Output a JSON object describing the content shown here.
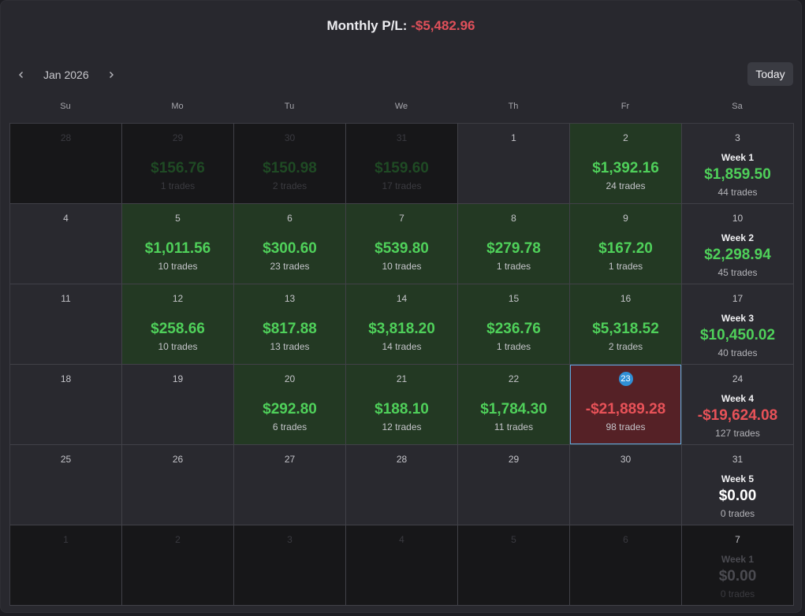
{
  "header": {
    "label": "Monthly P/L:",
    "value": "-$5,482.96",
    "month": "Jan 2026",
    "today_label": "Today"
  },
  "weekdays": [
    "Su",
    "Mo",
    "Tu",
    "We",
    "Th",
    "Fr",
    "Sa"
  ],
  "weeks": [
    {
      "days": [
        {
          "day": "28",
          "outside": true
        },
        {
          "day": "29",
          "outside": true,
          "pnl": "$156.76",
          "trades": "1 trades"
        },
        {
          "day": "30",
          "outside": true,
          "pnl": "$150.98",
          "trades": "2 trades"
        },
        {
          "day": "31",
          "outside": true,
          "pnl": "$159.60",
          "trades": "17 trades"
        },
        {
          "day": "1"
        },
        {
          "day": "2",
          "pnl": "$1,392.16",
          "trades": "24 trades",
          "status": "profit"
        }
      ],
      "summary": {
        "day": "3",
        "label": "Week 1",
        "pnl": "$1,859.50",
        "trades": "44 trades",
        "status": "profit"
      }
    },
    {
      "days": [
        {
          "day": "4"
        },
        {
          "day": "5",
          "pnl": "$1,011.56",
          "trades": "10 trades",
          "status": "profit"
        },
        {
          "day": "6",
          "pnl": "$300.60",
          "trades": "23 trades",
          "status": "profit"
        },
        {
          "day": "7",
          "pnl": "$539.80",
          "trades": "10 trades",
          "status": "profit"
        },
        {
          "day": "8",
          "pnl": "$279.78",
          "trades": "1 trades",
          "status": "profit"
        },
        {
          "day": "9",
          "pnl": "$167.20",
          "trades": "1 trades",
          "status": "profit"
        }
      ],
      "summary": {
        "day": "10",
        "label": "Week 2",
        "pnl": "$2,298.94",
        "trades": "45 trades",
        "status": "profit"
      }
    },
    {
      "days": [
        {
          "day": "11"
        },
        {
          "day": "12",
          "pnl": "$258.66",
          "trades": "10 trades",
          "status": "profit"
        },
        {
          "day": "13",
          "pnl": "$817.88",
          "trades": "13 trades",
          "status": "profit"
        },
        {
          "day": "14",
          "pnl": "$3,818.20",
          "trades": "14 trades",
          "status": "profit"
        },
        {
          "day": "15",
          "pnl": "$236.76",
          "trades": "1 trades",
          "status": "profit"
        },
        {
          "day": "16",
          "pnl": "$5,318.52",
          "trades": "2 trades",
          "status": "profit"
        }
      ],
      "summary": {
        "day": "17",
        "label": "Week 3",
        "pnl": "$10,450.02",
        "trades": "40 trades",
        "status": "profit"
      }
    },
    {
      "days": [
        {
          "day": "18"
        },
        {
          "day": "19"
        },
        {
          "day": "20",
          "pnl": "$292.80",
          "trades": "6 trades",
          "status": "profit"
        },
        {
          "day": "21",
          "pnl": "$188.10",
          "trades": "12 trades",
          "status": "profit"
        },
        {
          "day": "22",
          "pnl": "$1,784.30",
          "trades": "11 trades",
          "status": "profit"
        },
        {
          "day": "23",
          "pnl": "-$21,889.28",
          "trades": "98 trades",
          "status": "loss",
          "today": true
        }
      ],
      "summary": {
        "day": "24",
        "label": "Week 4",
        "pnl": "-$19,624.08",
        "trades": "127 trades",
        "status": "loss"
      }
    },
    {
      "days": [
        {
          "day": "25"
        },
        {
          "day": "26"
        },
        {
          "day": "27"
        },
        {
          "day": "28"
        },
        {
          "day": "29"
        },
        {
          "day": "30"
        }
      ],
      "summary": {
        "day": "31",
        "label": "Week 5",
        "pnl": "$0.00",
        "trades": "0 trades",
        "status": "zero"
      }
    },
    {
      "days": [
        {
          "day": "1",
          "outside": true
        },
        {
          "day": "2",
          "outside": true
        },
        {
          "day": "3",
          "outside": true
        },
        {
          "day": "4",
          "outside": true
        },
        {
          "day": "5",
          "outside": true
        },
        {
          "day": "6",
          "outside": true
        }
      ],
      "summary": {
        "day": "7",
        "label": "Week 1",
        "pnl": "$0.00",
        "trades": "0 trades",
        "status": "zero",
        "outside": true
      }
    }
  ],
  "colors": {
    "profit_text": "#4fd05a",
    "loss_text": "#e85258",
    "profit_cell": "#233923",
    "loss_cell": "#552126",
    "today_badge": "#2f8fd6"
  }
}
